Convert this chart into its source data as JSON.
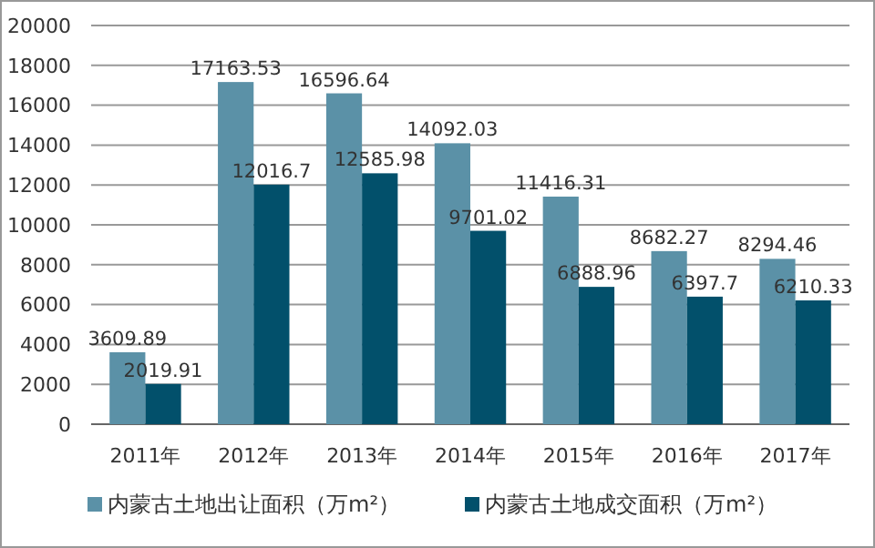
{
  "chart_data": {
    "type": "bar",
    "categories": [
      "2011年",
      "2012年",
      "2013年",
      "2014年",
      "2015年",
      "2016年",
      "2017年"
    ],
    "series": [
      {
        "name": "内蒙古土地出让面积（万m²）",
        "color": "#5b91a7",
        "values": [
          3609.89,
          17163.53,
          16596.64,
          14092.03,
          11416.31,
          8682.27,
          8294.46
        ]
      },
      {
        "name": "内蒙古土地成交面积（万m²）",
        "color": "#02506b",
        "values": [
          2019.91,
          12016.7,
          12585.98,
          9701.02,
          6888.96,
          6397.7,
          6210.33
        ]
      }
    ],
    "ylim": [
      0,
      20000
    ],
    "yticks": [
      0,
      2000,
      4000,
      6000,
      8000,
      10000,
      12000,
      14000,
      16000,
      18000,
      20000
    ],
    "grid": "y",
    "data_labels": true,
    "legend": "bottom"
  }
}
